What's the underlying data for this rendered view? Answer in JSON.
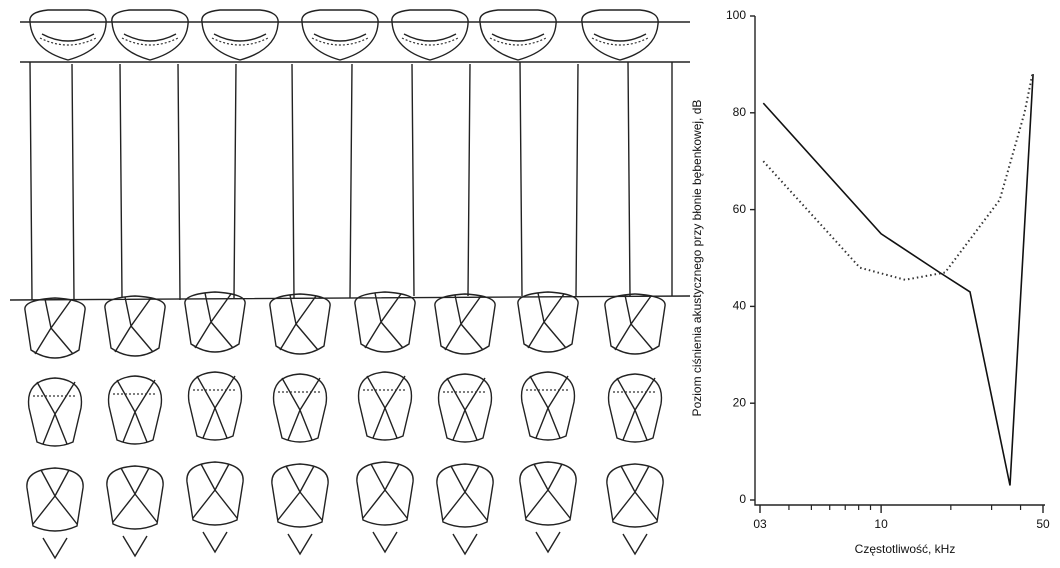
{
  "chart_data": {
    "type": "line",
    "x_label": "Częstotliwość, kHz",
    "y_label": "Poziom ciśnienia akustycznego przy błonie bębenkowej, dB",
    "x_scale": "log",
    "xlim": [
      3,
      50
    ],
    "ylim": [
      0,
      100
    ],
    "xticks": [
      {
        "value": 3,
        "label": "03"
      },
      10,
      50
    ],
    "xminor": [
      4,
      5,
      6,
      7,
      8,
      9,
      20,
      30,
      40
    ],
    "yticks": [
      0,
      20,
      40,
      60,
      80,
      100
    ],
    "series": [
      {
        "color": "#111",
        "style": "solid",
        "x": [
          3.1,
          10,
          17.9,
          24.2,
          36,
          45.3
        ],
        "values": [
          82,
          55,
          47,
          43,
          3,
          88
        ]
      },
      {
        "color": "#333",
        "style": "dotted",
        "x": [
          3.1,
          8.1,
          12.7,
          18.9,
          32.5,
          41.6,
          45
        ],
        "values": [
          70,
          48,
          45.5,
          47,
          62,
          80,
          88
        ]
      }
    ]
  }
}
